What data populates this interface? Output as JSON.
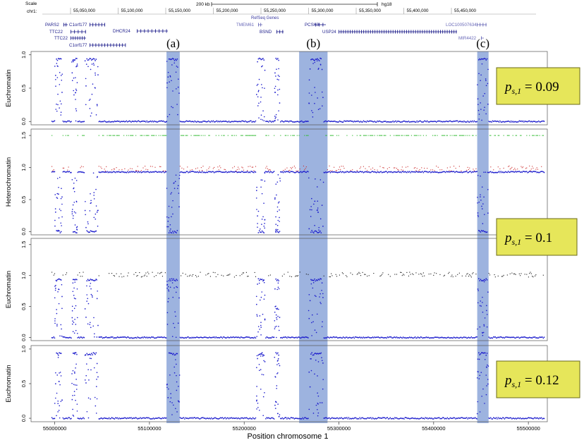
{
  "colors": {
    "highlight": "#8ca6d9",
    "euchromatin_points": "#1a1acc",
    "heterochromatin_upper": "#cc2a2a",
    "heterochromatin_top": "#33bb33",
    "background_points": "#111111",
    "gene_track": "#1c1c8a",
    "gene_track_light": "#6a6ab8",
    "label_box_fill": "#e6e65a",
    "label_box_border": "#6b6b1a"
  },
  "genome_browser": {
    "scale_label": "Scale",
    "chrom_label": "chr1:",
    "scale_bar_text": "200 kb",
    "assembly": "hg18",
    "track_title": "RefSeq Genes",
    "ruler_ticks": [
      "55,050,000",
      "55,100,000",
      "55,150,000",
      "55,200,000",
      "55,250,000",
      "55,300,000",
      "55,350,000",
      "55,400,000",
      "55,450,000"
    ],
    "genes": [
      {
        "name": "PARS2"
      },
      {
        "name": "C1orf177"
      },
      {
        "name": "TTC22"
      },
      {
        "name": "TTC22"
      },
      {
        "name": "C1orf177"
      },
      {
        "name": "DHCR24"
      },
      {
        "name": "TMEM61"
      },
      {
        "name": "BSND"
      },
      {
        "name": "PCSK9"
      },
      {
        "name": "USP24"
      },
      {
        "name": "LOC100507634"
      },
      {
        "name": "MIR4422"
      }
    ]
  },
  "region_labels": [
    "(a)",
    "(b)",
    "(c)"
  ],
  "xaxis": {
    "label": "Position chromosome  1",
    "ticks": [
      "55000000",
      "55100000",
      "55200000",
      "55300000",
      "55400000",
      "55500000"
    ]
  },
  "p_label_prefix": "p",
  "p_label_subscript": "s,1",
  "panel_labels": [
    {
      "ylabel": "Euchromatin",
      "p_value": "= 0.09"
    },
    {
      "ylabel": "Heterochromatin",
      "p_value": "= 0.1"
    },
    {
      "ylabel": "Euchromatin",
      "p_value": ""
    },
    {
      "ylabel": "Euchromatin",
      "p_value": "= 0.12"
    }
  ],
  "chart_data": {
    "type": "scatter",
    "x_range": [
      54975000,
      55520000
    ],
    "highlighted_regions": [
      {
        "label": "(a)",
        "x": [
          55118000,
          55132000
        ]
      },
      {
        "label": "(b)",
        "x": [
          55258000,
          55288000
        ]
      },
      {
        "label": "(c)",
        "x": [
          55446000,
          55458000
        ]
      }
    ],
    "euchromatin_regions": [
      [
        55000000,
        55008000
      ],
      [
        55018000,
        55024000
      ],
      [
        55032000,
        55046000
      ],
      [
        55118000,
        55132000
      ],
      [
        55213000,
        55222000
      ],
      [
        55232000,
        55238000
      ],
      [
        55268000,
        55284000
      ],
      [
        55446000,
        55458000
      ]
    ],
    "panels": [
      {
        "ylabel": "Euchromatin",
        "ylim": [
          -0.05,
          1.05
        ],
        "yticks": [
          "0.0",
          "0.5",
          "1.0"
        ],
        "baseline": 0.0,
        "active_level": 0.93,
        "upper_level": null,
        "top_level": null
      },
      {
        "ylabel": "Heterochromatin",
        "ylim": [
          -0.05,
          1.6
        ],
        "yticks": [
          "0.0",
          "0.5",
          "1.0",
          "1.5"
        ],
        "baseline": 0.93,
        "active_level": 0.0,
        "upper_level": 0.97,
        "top_level": 1.5
      },
      {
        "ylabel": "Euchromatin",
        "ylim": [
          -0.05,
          1.6
        ],
        "yticks": [
          "0.0",
          "0.5",
          "1.0",
          "1.5"
        ],
        "baseline": 0.0,
        "active_level": 0.93,
        "upper_level": 1.0,
        "top_level": null
      },
      {
        "ylabel": "Euchromatin",
        "ylim": [
          -0.05,
          1.05
        ],
        "yticks": [
          "0.0",
          "0.5",
          "1.0"
        ],
        "baseline": 0.0,
        "active_level": 0.93,
        "upper_level": null,
        "top_level": null
      }
    ]
  }
}
